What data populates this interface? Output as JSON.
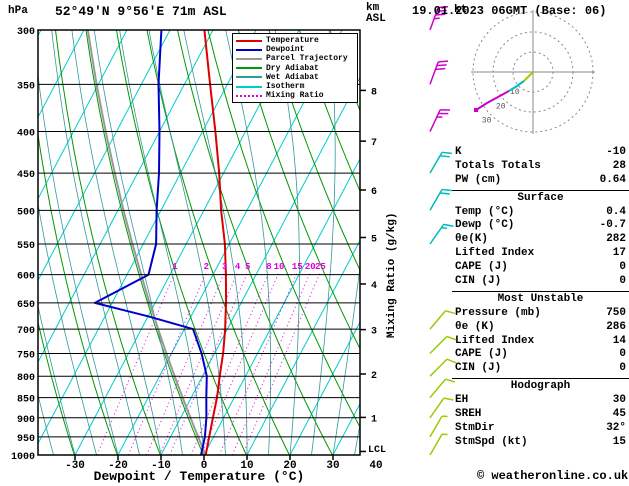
{
  "header": {
    "pressure_unit": "hPa",
    "station": "52°49'N 9°56'E 71m ASL",
    "datetime": "19.01.2023 06GMT (Base: 06)",
    "altitude_unit_line1": "km",
    "altitude_unit_line2": "ASL"
  },
  "legend": {
    "items": [
      {
        "label": "Temperature",
        "color": "#dd0000",
        "style": "solid"
      },
      {
        "label": "Dewpoint",
        "color": "#0000cc",
        "style": "solid"
      },
      {
        "label": "Parcel Trajectory",
        "color": "#999999",
        "style": "solid"
      },
      {
        "label": "Dry Adiabat",
        "color": "#009900",
        "style": "solid"
      },
      {
        "label": "Wet Adiabat",
        "color": "#339999",
        "style": "solid"
      },
      {
        "label": "Isotherm",
        "color": "#00cccc",
        "style": "solid"
      },
      {
        "label": "Mixing Ratio",
        "color": "#dd00dd",
        "style": "dotted"
      }
    ]
  },
  "axes": {
    "pressure_ticks": [
      300,
      350,
      400,
      450,
      500,
      550,
      600,
      650,
      700,
      750,
      800,
      850,
      900,
      950,
      1000
    ],
    "temp_ticks": [
      -30,
      -20,
      -10,
      0,
      10,
      20,
      30,
      40
    ],
    "km_ticks": [
      1,
      2,
      3,
      4,
      5,
      6,
      7,
      8
    ],
    "mixing_ratio_values": [
      1,
      2,
      3,
      4,
      5,
      8,
      10,
      15,
      20,
      25
    ],
    "xlabel": "Dewpoint / Temperature (°C)",
    "mixing_ratio_label": "Mixing Ratio (g/kg)",
    "lcl_label": "LCL"
  },
  "chart_data": {
    "type": "line",
    "variant": "skew-t log-p sounding",
    "pressure_axis": {
      "unit": "hPa",
      "range": [
        300,
        1000
      ],
      "scale": "log"
    },
    "temp_axis": {
      "unit": "°C",
      "range": [
        -30,
        40
      ]
    },
    "pressure_hPa": [
      1000,
      950,
      900,
      850,
      800,
      750,
      700,
      675,
      650,
      600,
      550,
      500,
      450,
      400,
      350,
      300
    ],
    "temperature_C": [
      0.4,
      -1,
      -2.5,
      -4,
      -6,
      -8,
      -10.5,
      -12,
      -13.5,
      -17,
      -21,
      -26,
      -31,
      -37,
      -44,
      -52
    ],
    "dewpoint_C": [
      -0.7,
      -2,
      -4,
      -6.5,
      -9,
      -13,
      -18,
      -30,
      -44,
      -35,
      -37,
      -41,
      -45,
      -50,
      -56,
      -62
    ],
    "parcel_C": [
      0.4,
      -3.6,
      -7.7,
      -12,
      -16.5,
      -21.2,
      -26.1,
      -28.6,
      -31.3,
      -36.7,
      -42.5,
      -48.7,
      -55.3,
      -62.5,
      -70.4,
      -79.1
    ],
    "wind_barbs": [
      {
        "p": 300,
        "dir": 20,
        "spd": 35,
        "color": "#cc00cc"
      },
      {
        "p": 350,
        "dir": 20,
        "spd": 30,
        "color": "#cc00cc"
      },
      {
        "p": 400,
        "dir": 25,
        "spd": 25,
        "color": "#cc00cc"
      },
      {
        "p": 450,
        "dir": 30,
        "spd": 20,
        "color": "#00bbbb"
      },
      {
        "p": 500,
        "dir": 30,
        "spd": 20,
        "color": "#00bbbb"
      },
      {
        "p": 550,
        "dir": 35,
        "spd": 15,
        "color": "#00bbbb"
      },
      {
        "p": 700,
        "dir": 40,
        "spd": 10,
        "color": "#99cc00"
      },
      {
        "p": 750,
        "dir": 45,
        "spd": 10,
        "color": "#99cc00"
      },
      {
        "p": 800,
        "dir": 45,
        "spd": 10,
        "color": "#99cc00"
      },
      {
        "p": 850,
        "dir": 40,
        "spd": 10,
        "color": "#99cc00"
      },
      {
        "p": 900,
        "dir": 35,
        "spd": 10,
        "color": "#99cc00"
      },
      {
        "p": 950,
        "dir": 30,
        "spd": 8,
        "color": "#99cc00"
      },
      {
        "p": 1000,
        "dir": 30,
        "spd": 5,
        "color": "#99cc00"
      }
    ]
  },
  "hodograph": {
    "unit_label": "kt",
    "ring_radii_kt": [
      10,
      20,
      30
    ],
    "trace": [
      {
        "color": "#99cc00",
        "points": [
          [
            533,
            72
          ],
          [
            528,
            77
          ],
          [
            524,
            81
          ]
        ]
      },
      {
        "color": "#00bbbb",
        "points": [
          [
            524,
            81
          ],
          [
            517,
            86
          ],
          [
            509,
            91
          ]
        ]
      },
      {
        "color": "#cc00cc",
        "points": [
          [
            509,
            91
          ],
          [
            498,
            97
          ],
          [
            487,
            103
          ],
          [
            476,
            110
          ]
        ]
      }
    ]
  },
  "indices": {
    "rows_top": [
      {
        "label": "K",
        "value": "-10"
      },
      {
        "label": "Totals Totals",
        "value": "28"
      },
      {
        "label": "PW (cm)",
        "value": "0.64"
      }
    ],
    "sections": [
      {
        "title": "Surface",
        "rows": [
          [
            "Temp (°C)",
            "0.4"
          ],
          [
            "Dewp (°C)",
            "-0.7"
          ],
          [
            "θe(K)",
            "282"
          ],
          [
            "Lifted Index",
            "17"
          ],
          [
            "CAPE (J)",
            "0"
          ],
          [
            "CIN (J)",
            "0"
          ]
        ]
      },
      {
        "title": "Most Unstable",
        "rows": [
          [
            "Pressure (mb)",
            "750"
          ],
          [
            "θe (K)",
            "286"
          ],
          [
            "Lifted Index",
            "14"
          ],
          [
            "CAPE (J)",
            "0"
          ],
          [
            "CIN (J)",
            "0"
          ]
        ]
      },
      {
        "title": "Hodograph",
        "rows": [
          [
            "EH",
            "30"
          ],
          [
            "SREH",
            "45"
          ],
          [
            "StmDir",
            "32°"
          ],
          [
            "StmSpd (kt)",
            "15"
          ]
        ]
      }
    ]
  },
  "footer": {
    "copyright": "© weatheronline.co.uk"
  }
}
